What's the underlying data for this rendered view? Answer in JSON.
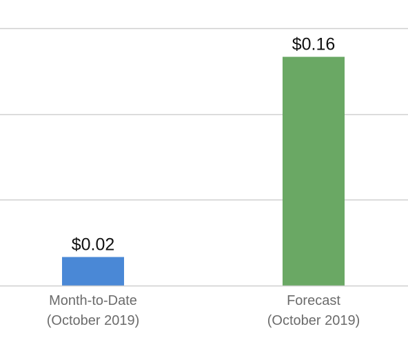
{
  "chart_data": {
    "type": "bar",
    "categories": [
      [
        "Month-to-Date",
        "(October 2019)"
      ],
      [
        "Forecast",
        "(October 2019)"
      ]
    ],
    "values": [
      0.02,
      0.16
    ],
    "data_labels": [
      "$0.02",
      "$0.16"
    ],
    "bar_colors": [
      "#4a88d6",
      "#6aa864"
    ],
    "title": "",
    "xlabel": "",
    "ylabel": "",
    "ylim": [
      0,
      0.18
    ],
    "gridline_values": [
      0.06,
      0.12,
      0.18
    ],
    "grid": true,
    "legend": "none"
  }
}
